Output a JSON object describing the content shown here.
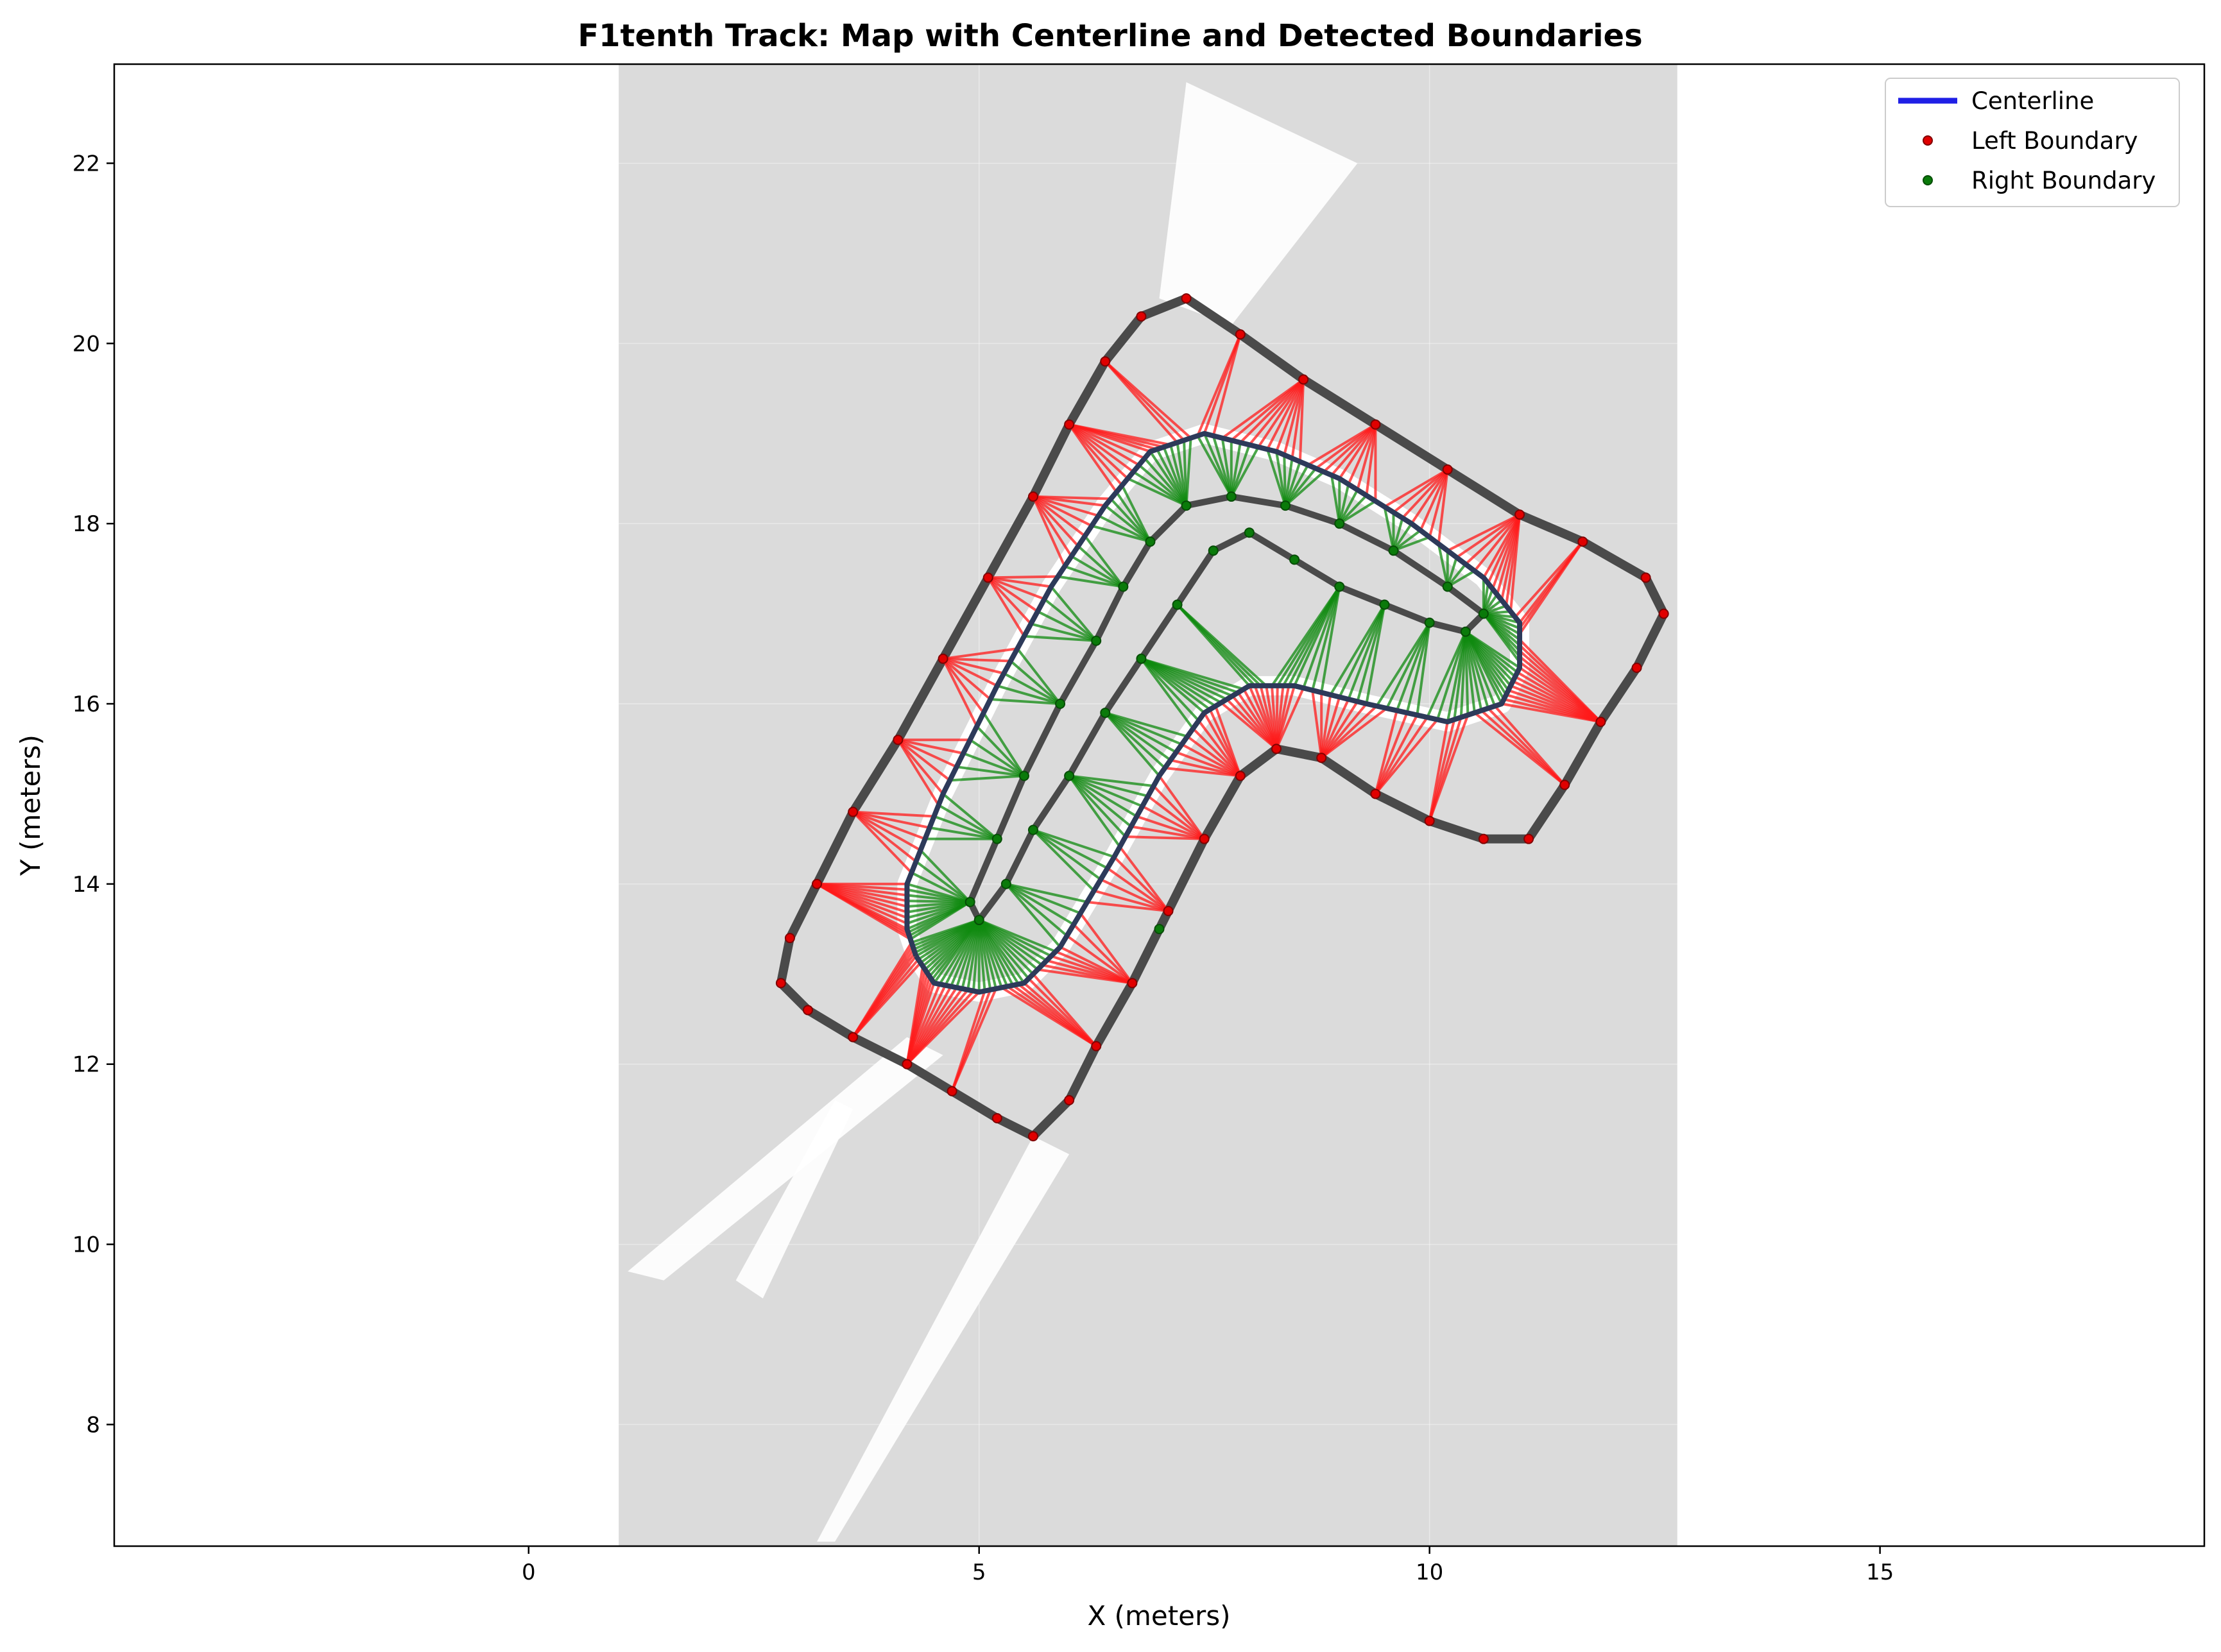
{
  "chart_data": {
    "type": "scatter",
    "title": "F1tenth Track: Map with Centerline and Detected Boundaries",
    "xlabel": "X (meters)",
    "ylabel": "Y (meters)",
    "xlim": [
      -4.6,
      18.6
    ],
    "ylim": [
      6.65,
      23.1
    ],
    "xticks": [
      0,
      5,
      10,
      15
    ],
    "yticks": [
      8,
      10,
      12,
      14,
      16,
      18,
      20,
      22
    ],
    "grid": true,
    "legend_position": "top-right",
    "map_extent": {
      "x": [
        1.0,
        12.75
      ],
      "y": [
        6.65,
        23.1
      ]
    },
    "series": [
      {
        "name": "Centerline",
        "kind": "line",
        "color": "#1f1fe6",
        "points": [
          [
            4.3,
            13.2
          ],
          [
            4.5,
            12.9
          ],
          [
            5.0,
            12.8
          ],
          [
            5.5,
            12.9
          ],
          [
            5.9,
            13.3
          ],
          [
            6.5,
            14.3
          ],
          [
            7.0,
            15.2
          ],
          [
            7.5,
            15.9
          ],
          [
            8.0,
            16.2
          ],
          [
            8.5,
            16.2
          ],
          [
            9.3,
            16.0
          ],
          [
            10.2,
            15.8
          ],
          [
            10.8,
            16.0
          ],
          [
            11.0,
            16.4
          ],
          [
            11.0,
            16.9
          ],
          [
            10.6,
            17.4
          ],
          [
            9.8,
            18.0
          ],
          [
            9.0,
            18.5
          ],
          [
            8.3,
            18.8
          ],
          [
            7.5,
            19.0
          ],
          [
            6.9,
            18.8
          ],
          [
            6.4,
            18.2
          ],
          [
            5.8,
            17.3
          ],
          [
            5.2,
            16.2
          ],
          [
            4.6,
            15.0
          ],
          [
            4.2,
            14.0
          ],
          [
            4.2,
            13.5
          ],
          [
            4.3,
            13.2
          ]
        ]
      },
      {
        "name": "Left Boundary",
        "kind": "points",
        "color": "#e00000",
        "points": [
          [
            2.8,
            12.9
          ],
          [
            3.1,
            12.6
          ],
          [
            3.6,
            12.3
          ],
          [
            4.2,
            12.0
          ],
          [
            4.7,
            11.7
          ],
          [
            5.2,
            11.4
          ],
          [
            5.6,
            11.2
          ],
          [
            6.0,
            11.6
          ],
          [
            6.3,
            12.2
          ],
          [
            6.7,
            12.9
          ],
          [
            7.1,
            13.7
          ],
          [
            7.5,
            14.5
          ],
          [
            7.9,
            15.2
          ],
          [
            8.3,
            15.5
          ],
          [
            8.8,
            15.4
          ],
          [
            9.4,
            15.0
          ],
          [
            10.0,
            14.7
          ],
          [
            10.6,
            14.5
          ],
          [
            11.1,
            14.5
          ],
          [
            11.5,
            15.1
          ],
          [
            11.9,
            15.8
          ],
          [
            12.3,
            16.4
          ],
          [
            12.6,
            17.0
          ],
          [
            12.4,
            17.4
          ],
          [
            11.7,
            17.8
          ],
          [
            11.0,
            18.1
          ],
          [
            10.2,
            18.6
          ],
          [
            9.4,
            19.1
          ],
          [
            8.6,
            19.6
          ],
          [
            7.9,
            20.1
          ],
          [
            7.3,
            20.5
          ],
          [
            6.8,
            20.3
          ],
          [
            6.4,
            19.8
          ],
          [
            6.0,
            19.1
          ],
          [
            5.6,
            18.3
          ],
          [
            5.1,
            17.4
          ],
          [
            4.6,
            16.5
          ],
          [
            4.1,
            15.6
          ],
          [
            3.6,
            14.8
          ],
          [
            3.2,
            14.0
          ],
          [
            2.9,
            13.4
          ]
        ]
      },
      {
        "name": "Right Boundary",
        "kind": "points",
        "color": "#0a7a0a",
        "points": [
          [
            5.0,
            13.6
          ],
          [
            5.3,
            14.0
          ],
          [
            5.6,
            14.6
          ],
          [
            6.0,
            15.2
          ],
          [
            6.4,
            15.9
          ],
          [
            6.8,
            16.5
          ],
          [
            7.2,
            17.1
          ],
          [
            7.6,
            17.7
          ],
          [
            8.0,
            17.9
          ],
          [
            8.5,
            17.6
          ],
          [
            9.0,
            17.3
          ],
          [
            9.5,
            17.1
          ],
          [
            10.0,
            16.9
          ],
          [
            10.4,
            16.8
          ],
          [
            10.6,
            17.0
          ],
          [
            10.2,
            17.3
          ],
          [
            9.6,
            17.7
          ],
          [
            9.0,
            18.0
          ],
          [
            8.4,
            18.2
          ],
          [
            7.8,
            18.3
          ],
          [
            7.3,
            18.2
          ],
          [
            6.9,
            17.8
          ],
          [
            6.6,
            17.3
          ],
          [
            6.3,
            16.7
          ],
          [
            5.9,
            16.0
          ],
          [
            5.5,
            15.2
          ],
          [
            5.2,
            14.5
          ],
          [
            4.9,
            13.8
          ],
          [
            7.0,
            13.5
          ]
        ]
      }
    ]
  },
  "legend": {
    "centerline": "Centerline",
    "left": "Left Boundary",
    "right": "Right Boundary"
  }
}
